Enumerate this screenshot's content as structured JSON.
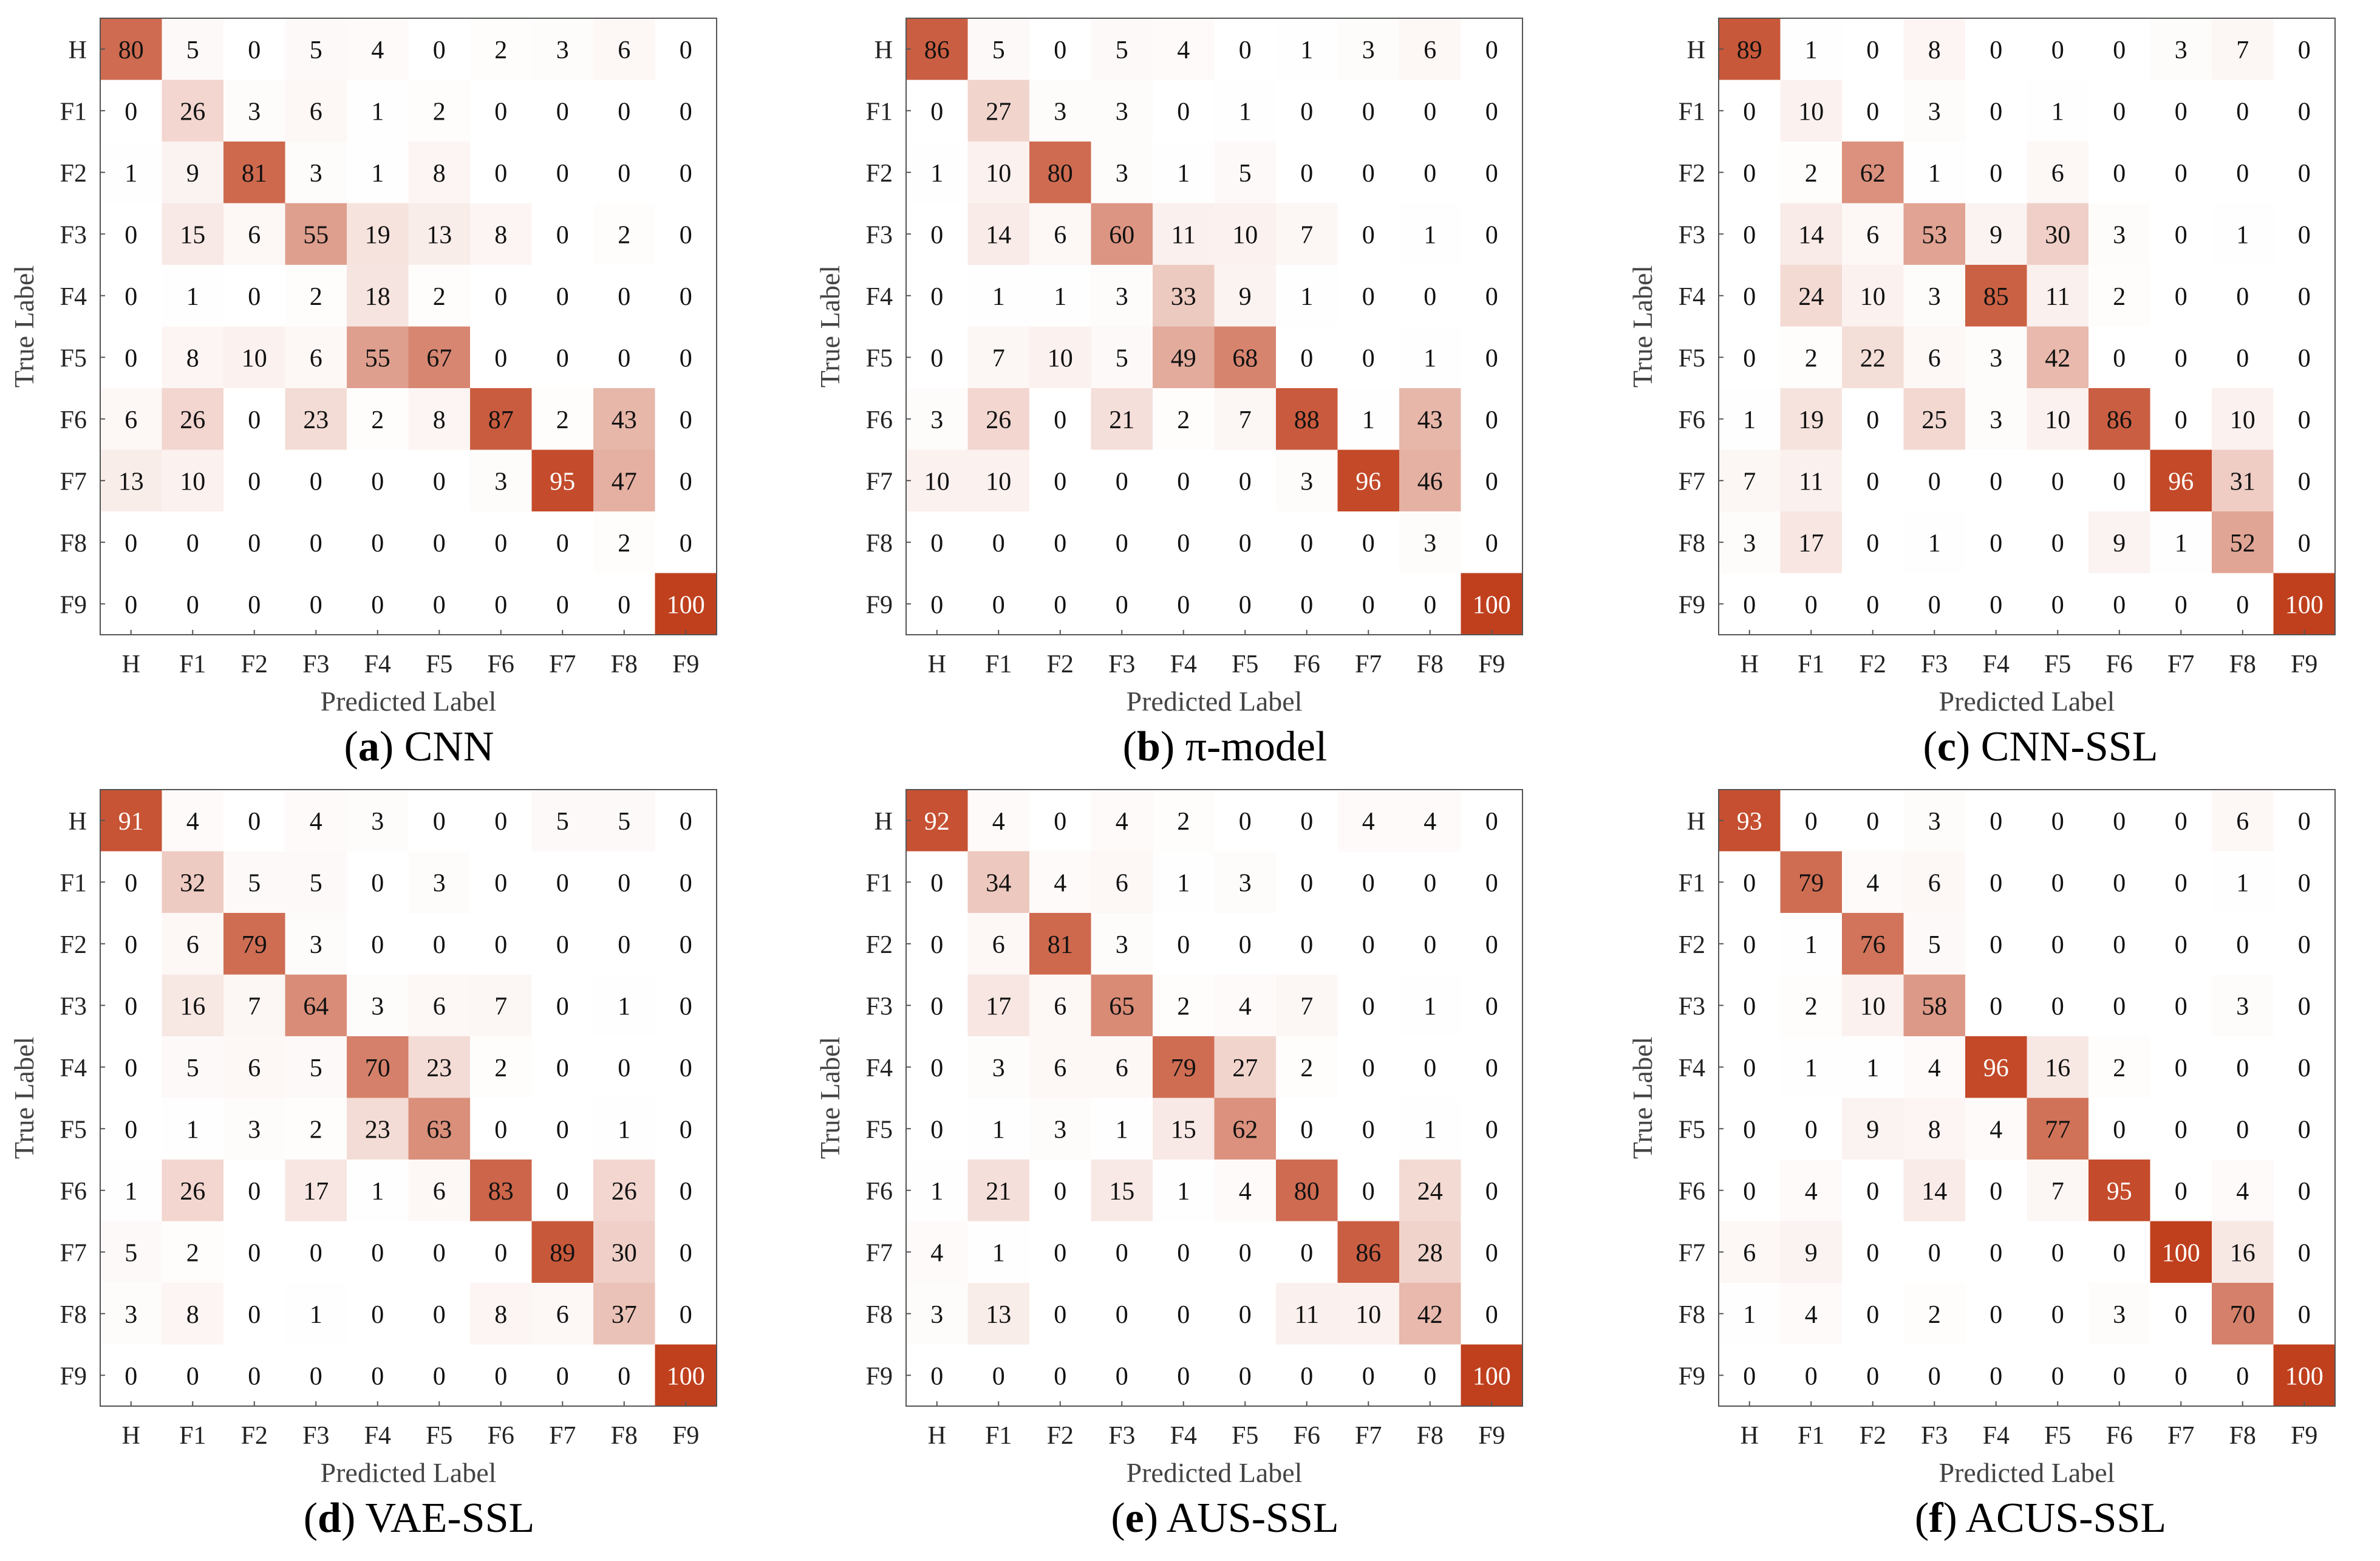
{
  "figure": {
    "labels": [
      "H",
      "F1",
      "F2",
      "F3",
      "F4",
      "F5",
      "F6",
      "F7",
      "F8",
      "F9"
    ],
    "xlabel": "Predicted Label",
    "ylabel": "True Label",
    "color_low": "#ffffff",
    "color_high": "#c0401e"
  },
  "chart_data": [
    {
      "type": "heatmap",
      "letter": "a",
      "name": "CNN",
      "xlabel": "Predicted Label",
      "ylabel": "True Label",
      "categories": [
        "H",
        "F1",
        "F2",
        "F3",
        "F4",
        "F5",
        "F6",
        "F7",
        "F8",
        "F9"
      ],
      "matrix": [
        [
          80,
          5,
          0,
          5,
          4,
          0,
          2,
          3,
          6,
          0
        ],
        [
          0,
          26,
          3,
          6,
          1,
          2,
          0,
          0,
          0,
          0
        ],
        [
          1,
          9,
          81,
          3,
          1,
          8,
          0,
          0,
          0,
          0
        ],
        [
          0,
          15,
          6,
          55,
          19,
          13,
          8,
          0,
          2,
          0
        ],
        [
          0,
          1,
          0,
          2,
          18,
          2,
          0,
          0,
          0,
          0
        ],
        [
          0,
          8,
          10,
          6,
          55,
          67,
          0,
          0,
          0,
          0
        ],
        [
          6,
          26,
          0,
          23,
          2,
          8,
          87,
          2,
          43,
          0
        ],
        [
          13,
          10,
          0,
          0,
          0,
          0,
          3,
          95,
          47,
          0
        ],
        [
          0,
          0,
          0,
          0,
          0,
          0,
          0,
          0,
          2,
          0
        ],
        [
          0,
          0,
          0,
          0,
          0,
          0,
          0,
          0,
          0,
          100
        ]
      ]
    },
    {
      "type": "heatmap",
      "letter": "b",
      "name": "π-model",
      "xlabel": "Predicted Label",
      "ylabel": "True Label",
      "categories": [
        "H",
        "F1",
        "F2",
        "F3",
        "F4",
        "F5",
        "F6",
        "F7",
        "F8",
        "F9"
      ],
      "matrix": [
        [
          86,
          5,
          0,
          5,
          4,
          0,
          1,
          3,
          6,
          0
        ],
        [
          0,
          27,
          3,
          3,
          0,
          1,
          0,
          0,
          0,
          0
        ],
        [
          1,
          10,
          80,
          3,
          1,
          5,
          0,
          0,
          0,
          0
        ],
        [
          0,
          14,
          6,
          60,
          11,
          10,
          7,
          0,
          1,
          0
        ],
        [
          0,
          1,
          1,
          3,
          33,
          9,
          1,
          0,
          0,
          0
        ],
        [
          0,
          7,
          10,
          5,
          49,
          68,
          0,
          0,
          1,
          0
        ],
        [
          3,
          26,
          0,
          21,
          2,
          7,
          88,
          1,
          43,
          0
        ],
        [
          10,
          10,
          0,
          0,
          0,
          0,
          3,
          96,
          46,
          0
        ],
        [
          0,
          0,
          0,
          0,
          0,
          0,
          0,
          0,
          3,
          0
        ],
        [
          0,
          0,
          0,
          0,
          0,
          0,
          0,
          0,
          0,
          100
        ]
      ]
    },
    {
      "type": "heatmap",
      "letter": "c",
      "name": "CNN-SSL",
      "xlabel": "Predicted Label",
      "ylabel": "True Label",
      "categories": [
        "H",
        "F1",
        "F2",
        "F3",
        "F4",
        "F5",
        "F6",
        "F7",
        "F8",
        "F9"
      ],
      "matrix": [
        [
          89,
          1,
          0,
          8,
          0,
          0,
          0,
          3,
          7,
          0
        ],
        [
          0,
          10,
          0,
          3,
          0,
          1,
          0,
          0,
          0,
          0
        ],
        [
          0,
          2,
          62,
          1,
          0,
          6,
          0,
          0,
          0,
          0
        ],
        [
          0,
          14,
          6,
          53,
          9,
          30,
          3,
          0,
          1,
          0
        ],
        [
          0,
          24,
          10,
          3,
          85,
          11,
          2,
          0,
          0,
          0
        ],
        [
          0,
          2,
          22,
          6,
          3,
          42,
          0,
          0,
          0,
          0
        ],
        [
          1,
          19,
          0,
          25,
          3,
          10,
          86,
          0,
          10,
          0
        ],
        [
          7,
          11,
          0,
          0,
          0,
          0,
          0,
          96,
          31,
          0
        ],
        [
          3,
          17,
          0,
          1,
          0,
          0,
          9,
          1,
          52,
          0
        ],
        [
          0,
          0,
          0,
          0,
          0,
          0,
          0,
          0,
          0,
          100
        ]
      ]
    },
    {
      "type": "heatmap",
      "letter": "d",
      "name": "VAE-SSL",
      "xlabel": "Predicted Label",
      "ylabel": "True Label",
      "categories": [
        "H",
        "F1",
        "F2",
        "F3",
        "F4",
        "F5",
        "F6",
        "F7",
        "F8",
        "F9"
      ],
      "matrix": [
        [
          91,
          4,
          0,
          4,
          3,
          0,
          0,
          5,
          5,
          0
        ],
        [
          0,
          32,
          5,
          5,
          0,
          3,
          0,
          0,
          0,
          0
        ],
        [
          0,
          6,
          79,
          3,
          0,
          0,
          0,
          0,
          0,
          0
        ],
        [
          0,
          16,
          7,
          64,
          3,
          6,
          7,
          0,
          1,
          0
        ],
        [
          0,
          5,
          6,
          5,
          70,
          23,
          2,
          0,
          0,
          0
        ],
        [
          0,
          1,
          3,
          2,
          23,
          63,
          0,
          0,
          1,
          0
        ],
        [
          1,
          26,
          0,
          17,
          1,
          6,
          83,
          0,
          26,
          0
        ],
        [
          5,
          2,
          0,
          0,
          0,
          0,
          0,
          89,
          30,
          0
        ],
        [
          3,
          8,
          0,
          1,
          0,
          0,
          8,
          6,
          37,
          0
        ],
        [
          0,
          0,
          0,
          0,
          0,
          0,
          0,
          0,
          0,
          100
        ]
      ]
    },
    {
      "type": "heatmap",
      "letter": "e",
      "name": "AUS-SSL",
      "xlabel": "Predicted Label",
      "ylabel": "True Label",
      "categories": [
        "H",
        "F1",
        "F2",
        "F3",
        "F4",
        "F5",
        "F6",
        "F7",
        "F8",
        "F9"
      ],
      "matrix": [
        [
          92,
          4,
          0,
          4,
          2,
          0,
          0,
          4,
          4,
          0
        ],
        [
          0,
          34,
          4,
          6,
          1,
          3,
          0,
          0,
          0,
          0
        ],
        [
          0,
          6,
          81,
          3,
          0,
          0,
          0,
          0,
          0,
          0
        ],
        [
          0,
          17,
          6,
          65,
          2,
          4,
          7,
          0,
          1,
          0
        ],
        [
          0,
          3,
          6,
          6,
          79,
          27,
          2,
          0,
          0,
          0
        ],
        [
          0,
          1,
          3,
          1,
          15,
          62,
          0,
          0,
          1,
          0
        ],
        [
          1,
          21,
          0,
          15,
          1,
          4,
          80,
          0,
          24,
          0
        ],
        [
          4,
          1,
          0,
          0,
          0,
          0,
          0,
          86,
          28,
          0
        ],
        [
          3,
          13,
          0,
          0,
          0,
          0,
          11,
          10,
          42,
          0
        ],
        [
          0,
          0,
          0,
          0,
          0,
          0,
          0,
          0,
          0,
          100
        ]
      ]
    },
    {
      "type": "heatmap",
      "letter": "f",
      "name": "ACUS-SSL",
      "xlabel": "Predicted Label",
      "ylabel": "True Label",
      "categories": [
        "H",
        "F1",
        "F2",
        "F3",
        "F4",
        "F5",
        "F6",
        "F7",
        "F8",
        "F9"
      ],
      "matrix": [
        [
          93,
          0,
          0,
          3,
          0,
          0,
          0,
          0,
          6,
          0
        ],
        [
          0,
          79,
          4,
          6,
          0,
          0,
          0,
          0,
          1,
          0
        ],
        [
          0,
          1,
          76,
          5,
          0,
          0,
          0,
          0,
          0,
          0
        ],
        [
          0,
          2,
          10,
          58,
          0,
          0,
          0,
          0,
          3,
          0
        ],
        [
          0,
          1,
          1,
          4,
          96,
          16,
          2,
          0,
          0,
          0
        ],
        [
          0,
          0,
          9,
          8,
          4,
          77,
          0,
          0,
          0,
          0
        ],
        [
          0,
          4,
          0,
          14,
          0,
          7,
          95,
          0,
          4,
          0
        ],
        [
          6,
          9,
          0,
          0,
          0,
          0,
          0,
          100,
          16,
          0
        ],
        [
          1,
          4,
          0,
          2,
          0,
          0,
          3,
          0,
          70,
          0
        ],
        [
          0,
          0,
          0,
          0,
          0,
          0,
          0,
          0,
          0,
          100
        ]
      ]
    }
  ]
}
